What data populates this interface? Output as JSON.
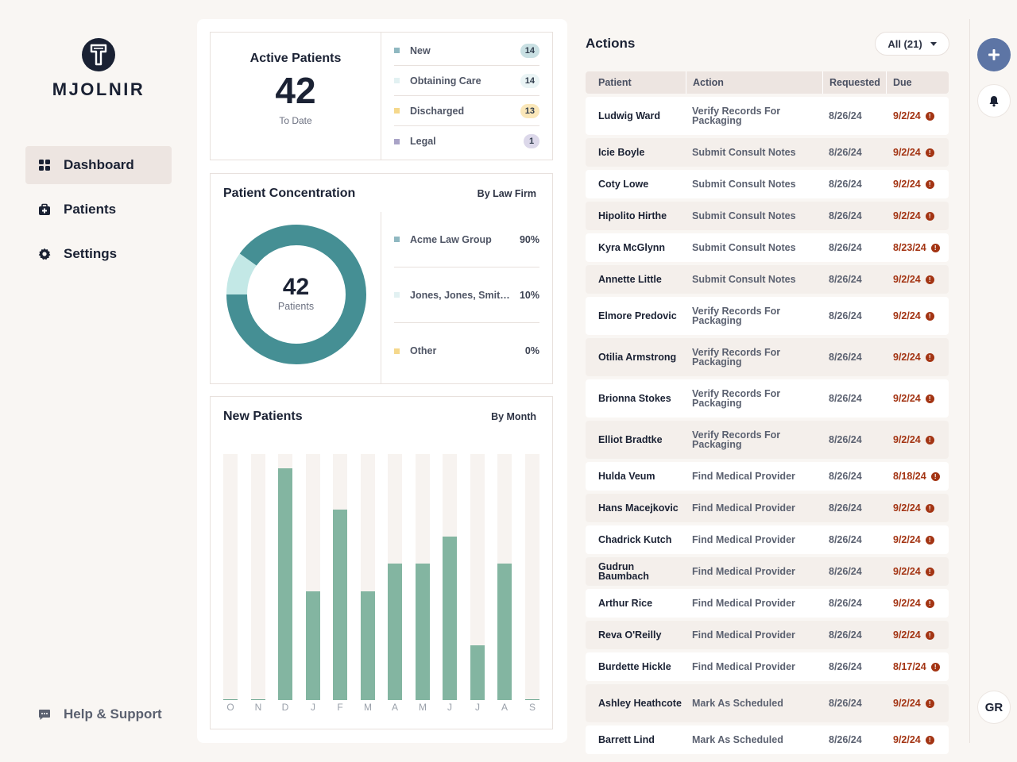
{
  "brand": {
    "name": "MJOLNIR"
  },
  "sidebar": {
    "items": [
      {
        "label": "Dashboard",
        "icon": "grid-icon",
        "active": true
      },
      {
        "label": "Patients",
        "icon": "medical-bag-icon",
        "active": false
      },
      {
        "label": "Settings",
        "icon": "gear-icon",
        "active": false
      }
    ],
    "help_label": "Help & Support"
  },
  "active_patients": {
    "title": "Active Patients",
    "count": "42",
    "subtitle": "To Date",
    "statuses": [
      {
        "label": "New",
        "count": "14",
        "color": "#8fb8c1",
        "pill_bg": "#c9e0e3"
      },
      {
        "label": "Obtaining Care",
        "count": "14",
        "color": "#e2f1f2",
        "pill_bg": "#eaf4f5"
      },
      {
        "label": "Discharged",
        "count": "13",
        "color": "#f5d88c",
        "pill_bg": "#fae7b9"
      },
      {
        "label": "Legal",
        "count": "1",
        "color": "#a9a3c7",
        "pill_bg": "#dcd8ea"
      }
    ]
  },
  "concentration": {
    "title": "Patient Concentration",
    "tag": "By Law Firm",
    "center_value": "42",
    "center_label": "Patients",
    "firms": [
      {
        "label": "Acme Law Group",
        "pct": "90%",
        "share": 0.9,
        "color": "#458f94",
        "sq": "#8fb8c1"
      },
      {
        "label": "Jones, Jones, Smith...",
        "pct": "10%",
        "share": 0.1,
        "color": "#c3e8e6",
        "sq": "#e2f1f2"
      },
      {
        "label": "Other",
        "pct": "0%",
        "share": 0.0,
        "color": "#f5d88c",
        "sq": "#f5d88c"
      }
    ]
  },
  "chart_data": {
    "type": "bar",
    "title": "New Patients",
    "subtitle": "By Month",
    "categories": [
      "O",
      "N",
      "D",
      "J",
      "F",
      "M",
      "A",
      "M",
      "J",
      "J",
      "A",
      "S"
    ],
    "values": [
      0,
      0,
      17,
      8,
      14,
      8,
      10,
      10,
      12,
      4,
      10,
      0
    ],
    "ylim": [
      0,
      17
    ]
  },
  "actions": {
    "title": "Actions",
    "filter": "All (21)",
    "columns": [
      "Patient",
      "Action",
      "Requested",
      "Due"
    ],
    "rows": [
      {
        "patient": "Ludwig Ward",
        "action": "Verify Records For Packaging",
        "requested": "8/26/24",
        "due": "9/2/24"
      },
      {
        "patient": "Icie Boyle",
        "action": "Submit Consult Notes",
        "requested": "8/26/24",
        "due": "9/2/24"
      },
      {
        "patient": "Coty Lowe",
        "action": "Submit Consult Notes",
        "requested": "8/26/24",
        "due": "9/2/24"
      },
      {
        "patient": "Hipolito Hirthe",
        "action": "Submit Consult Notes",
        "requested": "8/26/24",
        "due": "9/2/24"
      },
      {
        "patient": "Kyra McGlynn",
        "action": "Submit Consult Notes",
        "requested": "8/26/24",
        "due": "8/23/24"
      },
      {
        "patient": "Annette Little",
        "action": "Submit Consult Notes",
        "requested": "8/26/24",
        "due": "9/2/24"
      },
      {
        "patient": "Elmore Predovic",
        "action": "Verify Records For Packaging",
        "requested": "8/26/24",
        "due": "9/2/24"
      },
      {
        "patient": "Otilia Armstrong",
        "action": "Verify Records For Packaging",
        "requested": "8/26/24",
        "due": "9/2/24"
      },
      {
        "patient": "Brionna Stokes",
        "action": "Verify Records For Packaging",
        "requested": "8/26/24",
        "due": "9/2/24"
      },
      {
        "patient": "Elliot Bradtke",
        "action": "Verify Records For Packaging",
        "requested": "8/26/24",
        "due": "9/2/24"
      },
      {
        "patient": "Hulda Veum",
        "action": "Find Medical Provider",
        "requested": "8/26/24",
        "due": "8/18/24"
      },
      {
        "patient": "Hans Macejkovic",
        "action": "Find Medical Provider",
        "requested": "8/26/24",
        "due": "9/2/24"
      },
      {
        "patient": "Chadrick Kutch",
        "action": "Find Medical Provider",
        "requested": "8/26/24",
        "due": "9/2/24"
      },
      {
        "patient": "Gudrun Baumbach",
        "action": "Find Medical Provider",
        "requested": "8/26/24",
        "due": "9/2/24"
      },
      {
        "patient": "Arthur Rice",
        "action": "Find Medical Provider",
        "requested": "8/26/24",
        "due": "9/2/24"
      },
      {
        "patient": "Reva O'Reilly",
        "action": "Find Medical Provider",
        "requested": "8/26/24",
        "due": "9/2/24"
      },
      {
        "patient": "Burdette Hickle",
        "action": "Find Medical Provider",
        "requested": "8/26/24",
        "due": "8/17/24"
      },
      {
        "patient": "Ashley Heathcote",
        "action": "Mark As Scheduled",
        "requested": "8/26/24",
        "due": "9/2/24"
      },
      {
        "patient": "Barrett Lind",
        "action": "Mark As Scheduled",
        "requested": "8/26/24",
        "due": "9/2/24"
      }
    ]
  },
  "rail": {
    "avatar_initials": "GR"
  },
  "colors": {
    "accent": "#5d75a5",
    "alert": "#a33413",
    "bar": "#83b5a1",
    "donut_main": "#458f94"
  }
}
